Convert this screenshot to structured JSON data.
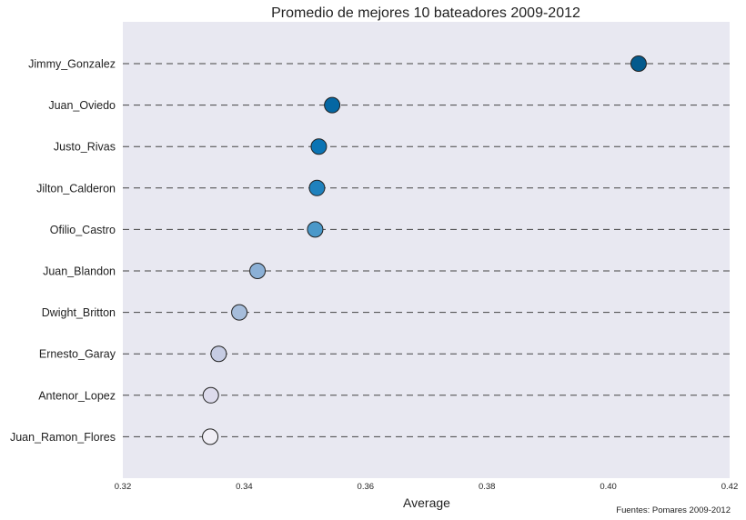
{
  "chart_data": {
    "type": "scatter",
    "title": "Promedio de mejores 10 bateadores 2009-2012",
    "xlabel": "Average",
    "ylabel": "",
    "xlim": [
      0.32,
      0.42
    ],
    "xticks": [
      "0.32",
      "0.34",
      "0.36",
      "0.38",
      "0.40",
      "0.42"
    ],
    "grid": "horizontal dashed lines at each player",
    "categories": [
      "Jimmy_Gonzalez",
      "Juan_Oviedo",
      "Justo_Rivas",
      "Jilton_Calderon",
      "Ofilio_Castro",
      "Juan_Blandon",
      "Dwight_Britton",
      "Ernesto_Garay",
      "Antenor_Lopez",
      "Juan_Ramon_Flores"
    ],
    "values": [
      0.405,
      0.3545,
      0.3523,
      0.352,
      0.3517,
      0.3422,
      0.3392,
      0.3358,
      0.3345,
      0.3344
    ],
    "colors": [
      "#045a8d",
      "#0567a3",
      "#0b74b4",
      "#1f81bd",
      "#4a98c9",
      "#8bb0d6",
      "#a6bddb",
      "#c6cce3",
      "#dddbec",
      "#f0eef5"
    ],
    "source": "Fuentes: Pomares 2009-2012"
  }
}
